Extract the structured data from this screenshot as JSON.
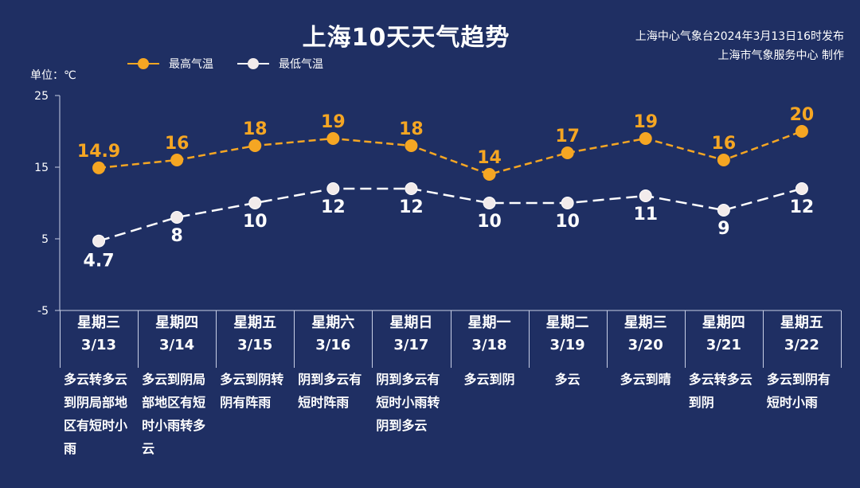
{
  "header": {
    "title": "上海10天天气趋势",
    "publisher_line1": "上海中心气象台2024年3月13日16时发布",
    "publisher_line2": "上海市气象服务中心 制作"
  },
  "legend": {
    "high_label": "最高气温",
    "low_label": "最低气温"
  },
  "unit_label": "单位：℃",
  "days": [
    {
      "weekday": "星期三",
      "date": "3/13",
      "desc": "多云转多云到阴局部地区有短时小雨"
    },
    {
      "weekday": "星期四",
      "date": "3/14",
      "desc": "多云到阴局部地区有短时小雨转多云"
    },
    {
      "weekday": "星期五",
      "date": "3/15",
      "desc": "多云到阴转阴有阵雨"
    },
    {
      "weekday": "星期六",
      "date": "3/16",
      "desc": "阴到多云有短时阵雨"
    },
    {
      "weekday": "星期日",
      "date": "3/17",
      "desc": "阴到多云有短时小雨转阴到多云"
    },
    {
      "weekday": "星期一",
      "date": "3/18",
      "desc": "多云到阴"
    },
    {
      "weekday": "星期二",
      "date": "3/19",
      "desc": "多云"
    },
    {
      "weekday": "星期三",
      "date": "3/20",
      "desc": "多云到晴"
    },
    {
      "weekday": "星期四",
      "date": "3/21",
      "desc": "多云转多云到阴"
    },
    {
      "weekday": "星期五",
      "date": "3/22",
      "desc": "多云到阴有短时小雨"
    }
  ],
  "chart_data": {
    "type": "line",
    "title": "上海10天天气趋势",
    "ylabel": "单位：℃",
    "categories": [
      "3/13",
      "3/14",
      "3/15",
      "3/16",
      "3/17",
      "3/18",
      "3/19",
      "3/20",
      "3/21",
      "3/22"
    ],
    "series": [
      {
        "name": "最高气温",
        "values": [
          14.9,
          16,
          18,
          19,
          18,
          14,
          17,
          19,
          16,
          20
        ],
        "value_labels": [
          "14.9",
          "16",
          "18",
          "19",
          "18",
          "14",
          "17",
          "19",
          "16",
          "20"
        ],
        "color": "#f5a623"
      },
      {
        "name": "最低气温",
        "values": [
          4.7,
          8,
          10,
          12,
          12,
          10,
          10,
          11,
          9,
          12
        ],
        "value_labels": [
          "4.7",
          "8",
          "10",
          "12",
          "12",
          "10",
          "10",
          "11",
          "9",
          "12"
        ],
        "color": "#ffffff"
      }
    ],
    "ylim": [
      -5,
      25
    ],
    "yticks": [
      "-5",
      "5",
      "15",
      "25"
    ],
    "grid": false,
    "legend_position": "top-left",
    "line_style": "dashed"
  }
}
